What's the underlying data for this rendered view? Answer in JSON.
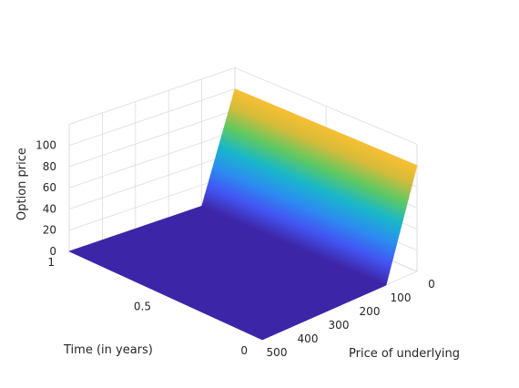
{
  "chart_data": {
    "type": "surface",
    "title": "",
    "xlabel": "Price of underlying",
    "ylabel": "Time (in years)",
    "zlabel": "Option price",
    "xticks": [
      "0",
      "100",
      "200",
      "300",
      "400",
      "500"
    ],
    "yticks": [
      "0",
      "0.5",
      "1"
    ],
    "zticks": [
      "0",
      "20",
      "40",
      "60",
      "80",
      "100"
    ],
    "xlim": [
      0,
      500
    ],
    "ylim": [
      0,
      1
    ],
    "zlim": [
      0,
      120
    ],
    "grid": true,
    "colormap": "parula",
    "colormap_stops": [
      "#3e26a8",
      "#4355f2",
      "#2b8ef0",
      "#19b7c9",
      "#5ec962",
      "#d6bb3a",
      "#fec031",
      "#f9fb15"
    ],
    "surface_profile": {
      "description": "put-like payoff: price rises linearly as underlying price falls below strike",
      "strike": 100,
      "underlying_values": [
        0,
        20,
        40,
        60,
        70,
        80,
        85,
        90,
        95,
        100,
        110,
        150,
        200,
        300,
        400,
        500
      ],
      "price_values": [
        100,
        80,
        60,
        40,
        30,
        20,
        15,
        10,
        5,
        0,
        0,
        0,
        0,
        0,
        0,
        0
      ]
    }
  }
}
